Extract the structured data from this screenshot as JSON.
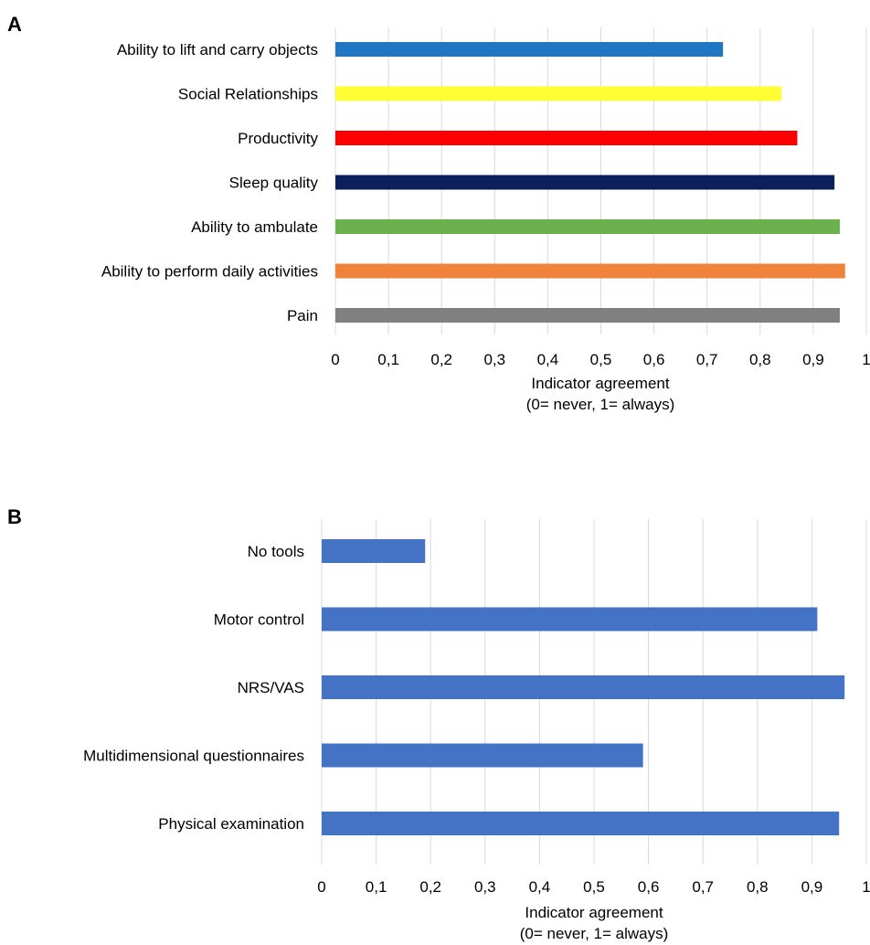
{
  "chart_data": [
    {
      "panel_label": "A",
      "type": "bar",
      "orientation": "horizontal",
      "categories": [
        "Ability to lift and carry objects",
        "Social Relationships",
        "Productivity",
        "Sleep quality",
        "Ability to ambulate",
        "Ability to perform daily activities",
        "Pain"
      ],
      "values": [
        0.73,
        0.84,
        0.87,
        0.94,
        0.95,
        0.96,
        0.95
      ],
      "colors": [
        "#1f77c4",
        "#ffff33",
        "#ff0000",
        "#0b1f5c",
        "#6ab04c",
        "#f0833a",
        "#808080"
      ],
      "xlim": [
        0,
        1
      ],
      "xticks": [
        "0",
        "0,1",
        "0,2",
        "0,3",
        "0,4",
        "0,5",
        "0,6",
        "0,7",
        "0,8",
        "0,9",
        "1"
      ],
      "xlabel": [
        "Indicator agreement",
        "(0= never, 1= always)"
      ],
      "ylabel": "",
      "grid": true,
      "legend": "none"
    },
    {
      "panel_label": "B",
      "type": "bar",
      "orientation": "horizontal",
      "categories": [
        "No tools",
        "Motor control",
        "NRS/VAS",
        "Multidimensional questionnaires",
        "Physical examination"
      ],
      "values": [
        0.19,
        0.91,
        0.96,
        0.59,
        0.95
      ],
      "colors": [
        "#4472c4",
        "#4472c4",
        "#4472c4",
        "#4472c4",
        "#4472c4"
      ],
      "xlim": [
        0,
        1
      ],
      "xticks": [
        "0",
        "0,1",
        "0,2",
        "0,3",
        "0,4",
        "0,5",
        "0,6",
        "0,7",
        "0,8",
        "0,9",
        "1"
      ],
      "xlabel": [
        "Indicator agreement",
        "(0= never, 1= always)"
      ],
      "ylabel": "",
      "grid": true,
      "legend": "none"
    }
  ]
}
